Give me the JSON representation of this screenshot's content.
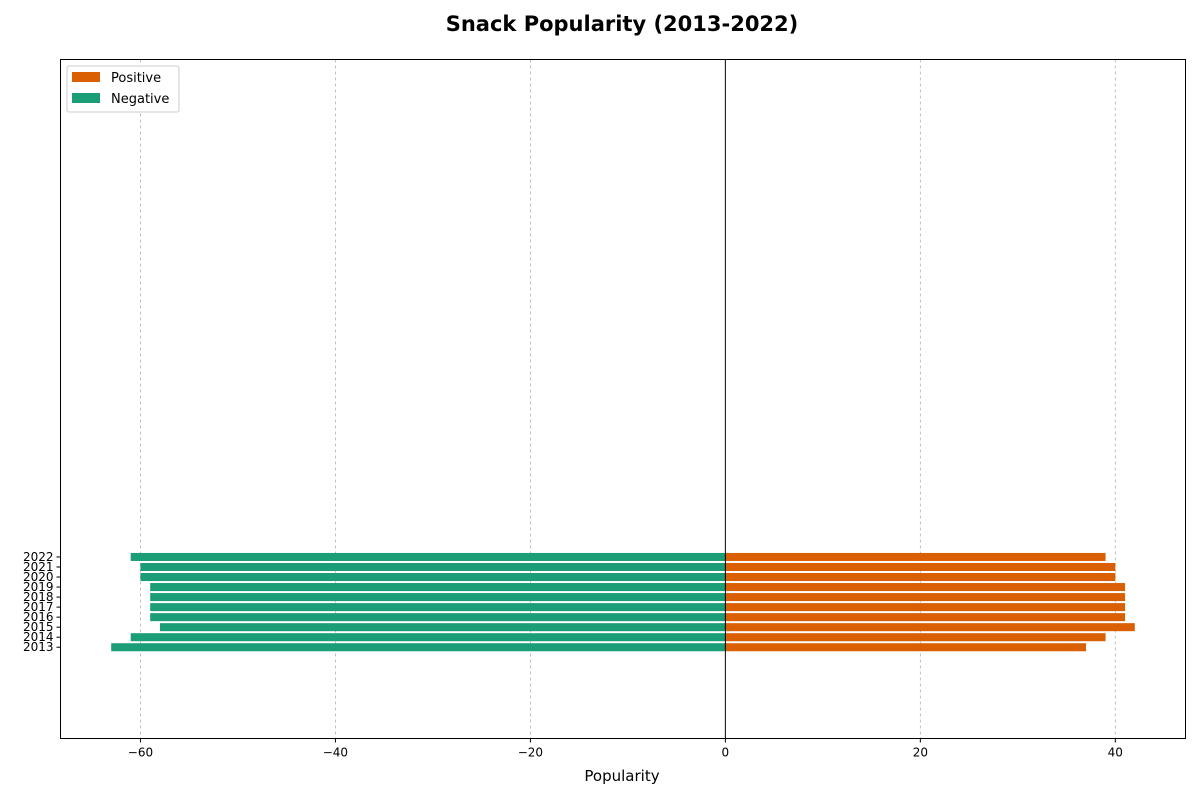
{
  "chart_data": {
    "type": "bar",
    "orientation": "horizontal",
    "title": "Snack Popularity (2013-2022)",
    "xlabel": "Popularity",
    "ylabel": "",
    "xlim": [
      -68.2,
      47.2
    ],
    "x_ticks": [
      -60,
      -40,
      -20,
      0,
      20,
      40
    ],
    "x_tick_labels": [
      "−60",
      "−40",
      "−20",
      "0",
      "20",
      "40"
    ],
    "ylim": [
      2003.9,
      2071.6
    ],
    "categories": [
      "2013",
      "2014",
      "2015",
      "2016",
      "2017",
      "2018",
      "2019",
      "2020",
      "2021",
      "2022"
    ],
    "series": [
      {
        "name": "Positive",
        "color": "#d95f02",
        "values": [
          37,
          39,
          42,
          41,
          41,
          41,
          41,
          40,
          40,
          39
        ]
      },
      {
        "name": "Negative",
        "color": "#1b9e77",
        "values": [
          -63,
          -61,
          -58,
          -59,
          -59,
          -59,
          -59,
          -60,
          -60,
          -61
        ]
      }
    ],
    "grid": "x-dashed",
    "legend_position": "top-left"
  }
}
